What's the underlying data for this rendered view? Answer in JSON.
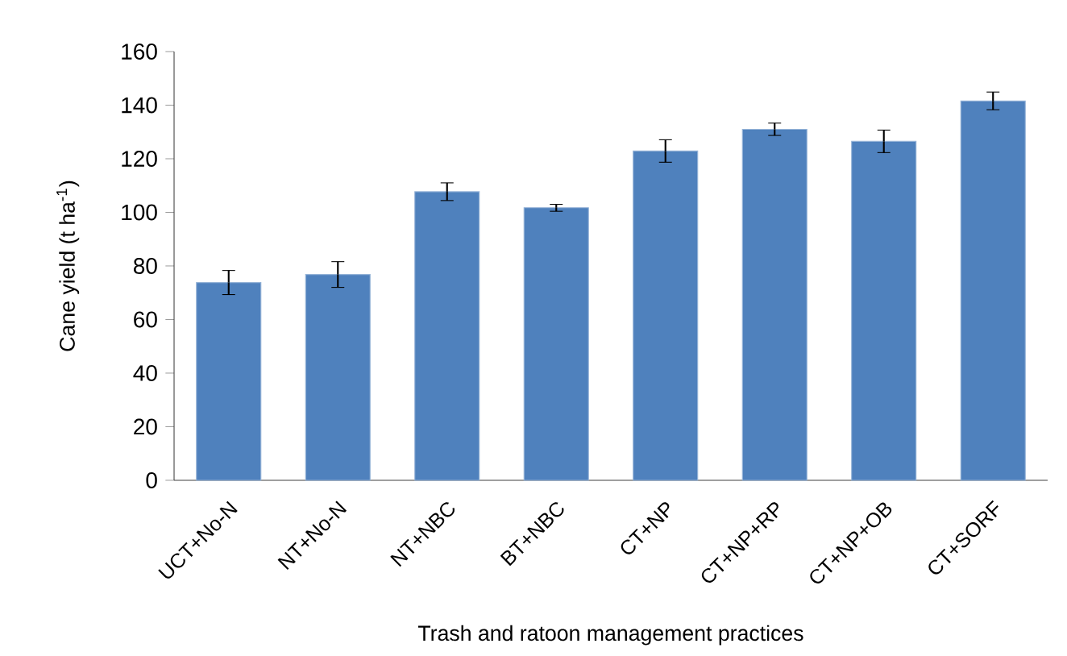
{
  "chart_data": {
    "type": "bar",
    "xlabel": "Trash and ratoon management practices",
    "ylabel": "Cane yield (t ha$^{-1}$)",
    "categories": [
      "UCT+No-N",
      "NT+No-N",
      "NT+NBC",
      "BT+NBC",
      "CT+NP",
      "CT+NP+RP",
      "CT+NP+OB",
      "CT+SORF"
    ],
    "values": [
      73.8,
      76.8,
      107.7,
      101.7,
      122.9,
      131,
      126.5,
      141.6
    ],
    "errors": [
      4.5,
      4.8,
      3.3,
      1.3,
      4.2,
      2.3,
      4.2,
      3.3
    ],
    "color": "#4f81bd",
    "ylim": [
      0,
      160
    ],
    "yticks": [
      0,
      20,
      40,
      60,
      80,
      100,
      120,
      140,
      160
    ],
    "grid": false
  }
}
